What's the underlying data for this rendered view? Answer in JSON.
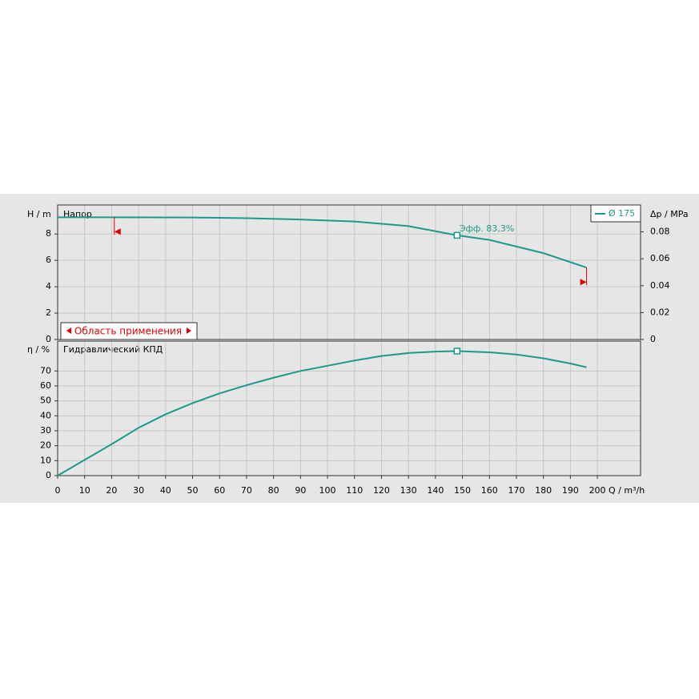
{
  "chart_data": [
    {
      "type": "line",
      "title": "Напор",
      "ylabel": "H / m",
      "y2label": "Δp / MPa",
      "x": [
        0,
        20,
        50,
        70,
        90,
        110,
        130,
        148,
        160,
        180,
        196
      ],
      "series": [
        {
          "name": "Ø 175",
          "color": "#1b9a8b",
          "values": [
            9.27,
            9.27,
            9.25,
            9.2,
            9.1,
            8.95,
            8.6,
            7.9,
            7.55,
            6.55,
            5.45
          ]
        }
      ],
      "xlim": [
        0,
        216
      ],
      "ylim": [
        0,
        10.2
      ],
      "yticks": [
        0,
        2,
        4,
        6,
        8
      ],
      "y2lim": [
        0,
        0.1
      ],
      "y2ticks": [
        0,
        0.02,
        0.04,
        0.06,
        0.08
      ],
      "operating_point": {
        "x": 148,
        "y": 7.9,
        "label": "Эфф.  83,3%"
      },
      "application_range": {
        "label": "Область применения",
        "q": [
          21,
          196
        ],
        "color": "#e00000"
      },
      "grid": true
    },
    {
      "type": "line",
      "title": "Гидравлический КПД",
      "ylabel": "η / %",
      "xlabel": "Q / m³/h",
      "x": [
        0,
        10,
        20,
        30,
        40,
        50,
        60,
        70,
        80,
        90,
        100,
        110,
        120,
        130,
        140,
        148,
        160,
        170,
        180,
        190,
        196
      ],
      "series": [
        {
          "name": "Ø 175",
          "color": "#1b9a8b",
          "values": [
            0,
            10.5,
            21,
            32,
            41,
            48.5,
            55,
            60.5,
            65.5,
            70,
            73.5,
            77,
            80,
            82,
            83,
            83.3,
            82.5,
            81,
            78.5,
            75,
            72.5
          ]
        }
      ],
      "xlim": [
        0,
        216
      ],
      "xticks": [
        0,
        10,
        20,
        30,
        40,
        50,
        60,
        70,
        80,
        90,
        100,
        110,
        120,
        130,
        140,
        150,
        160,
        170,
        180,
        190,
        200
      ],
      "ylim": [
        0,
        90
      ],
      "yticks": [
        0,
        10,
        20,
        30,
        40,
        50,
        60,
        70
      ],
      "operating_point": {
        "x": 148,
        "y": 83.3
      },
      "grid": true
    }
  ]
}
